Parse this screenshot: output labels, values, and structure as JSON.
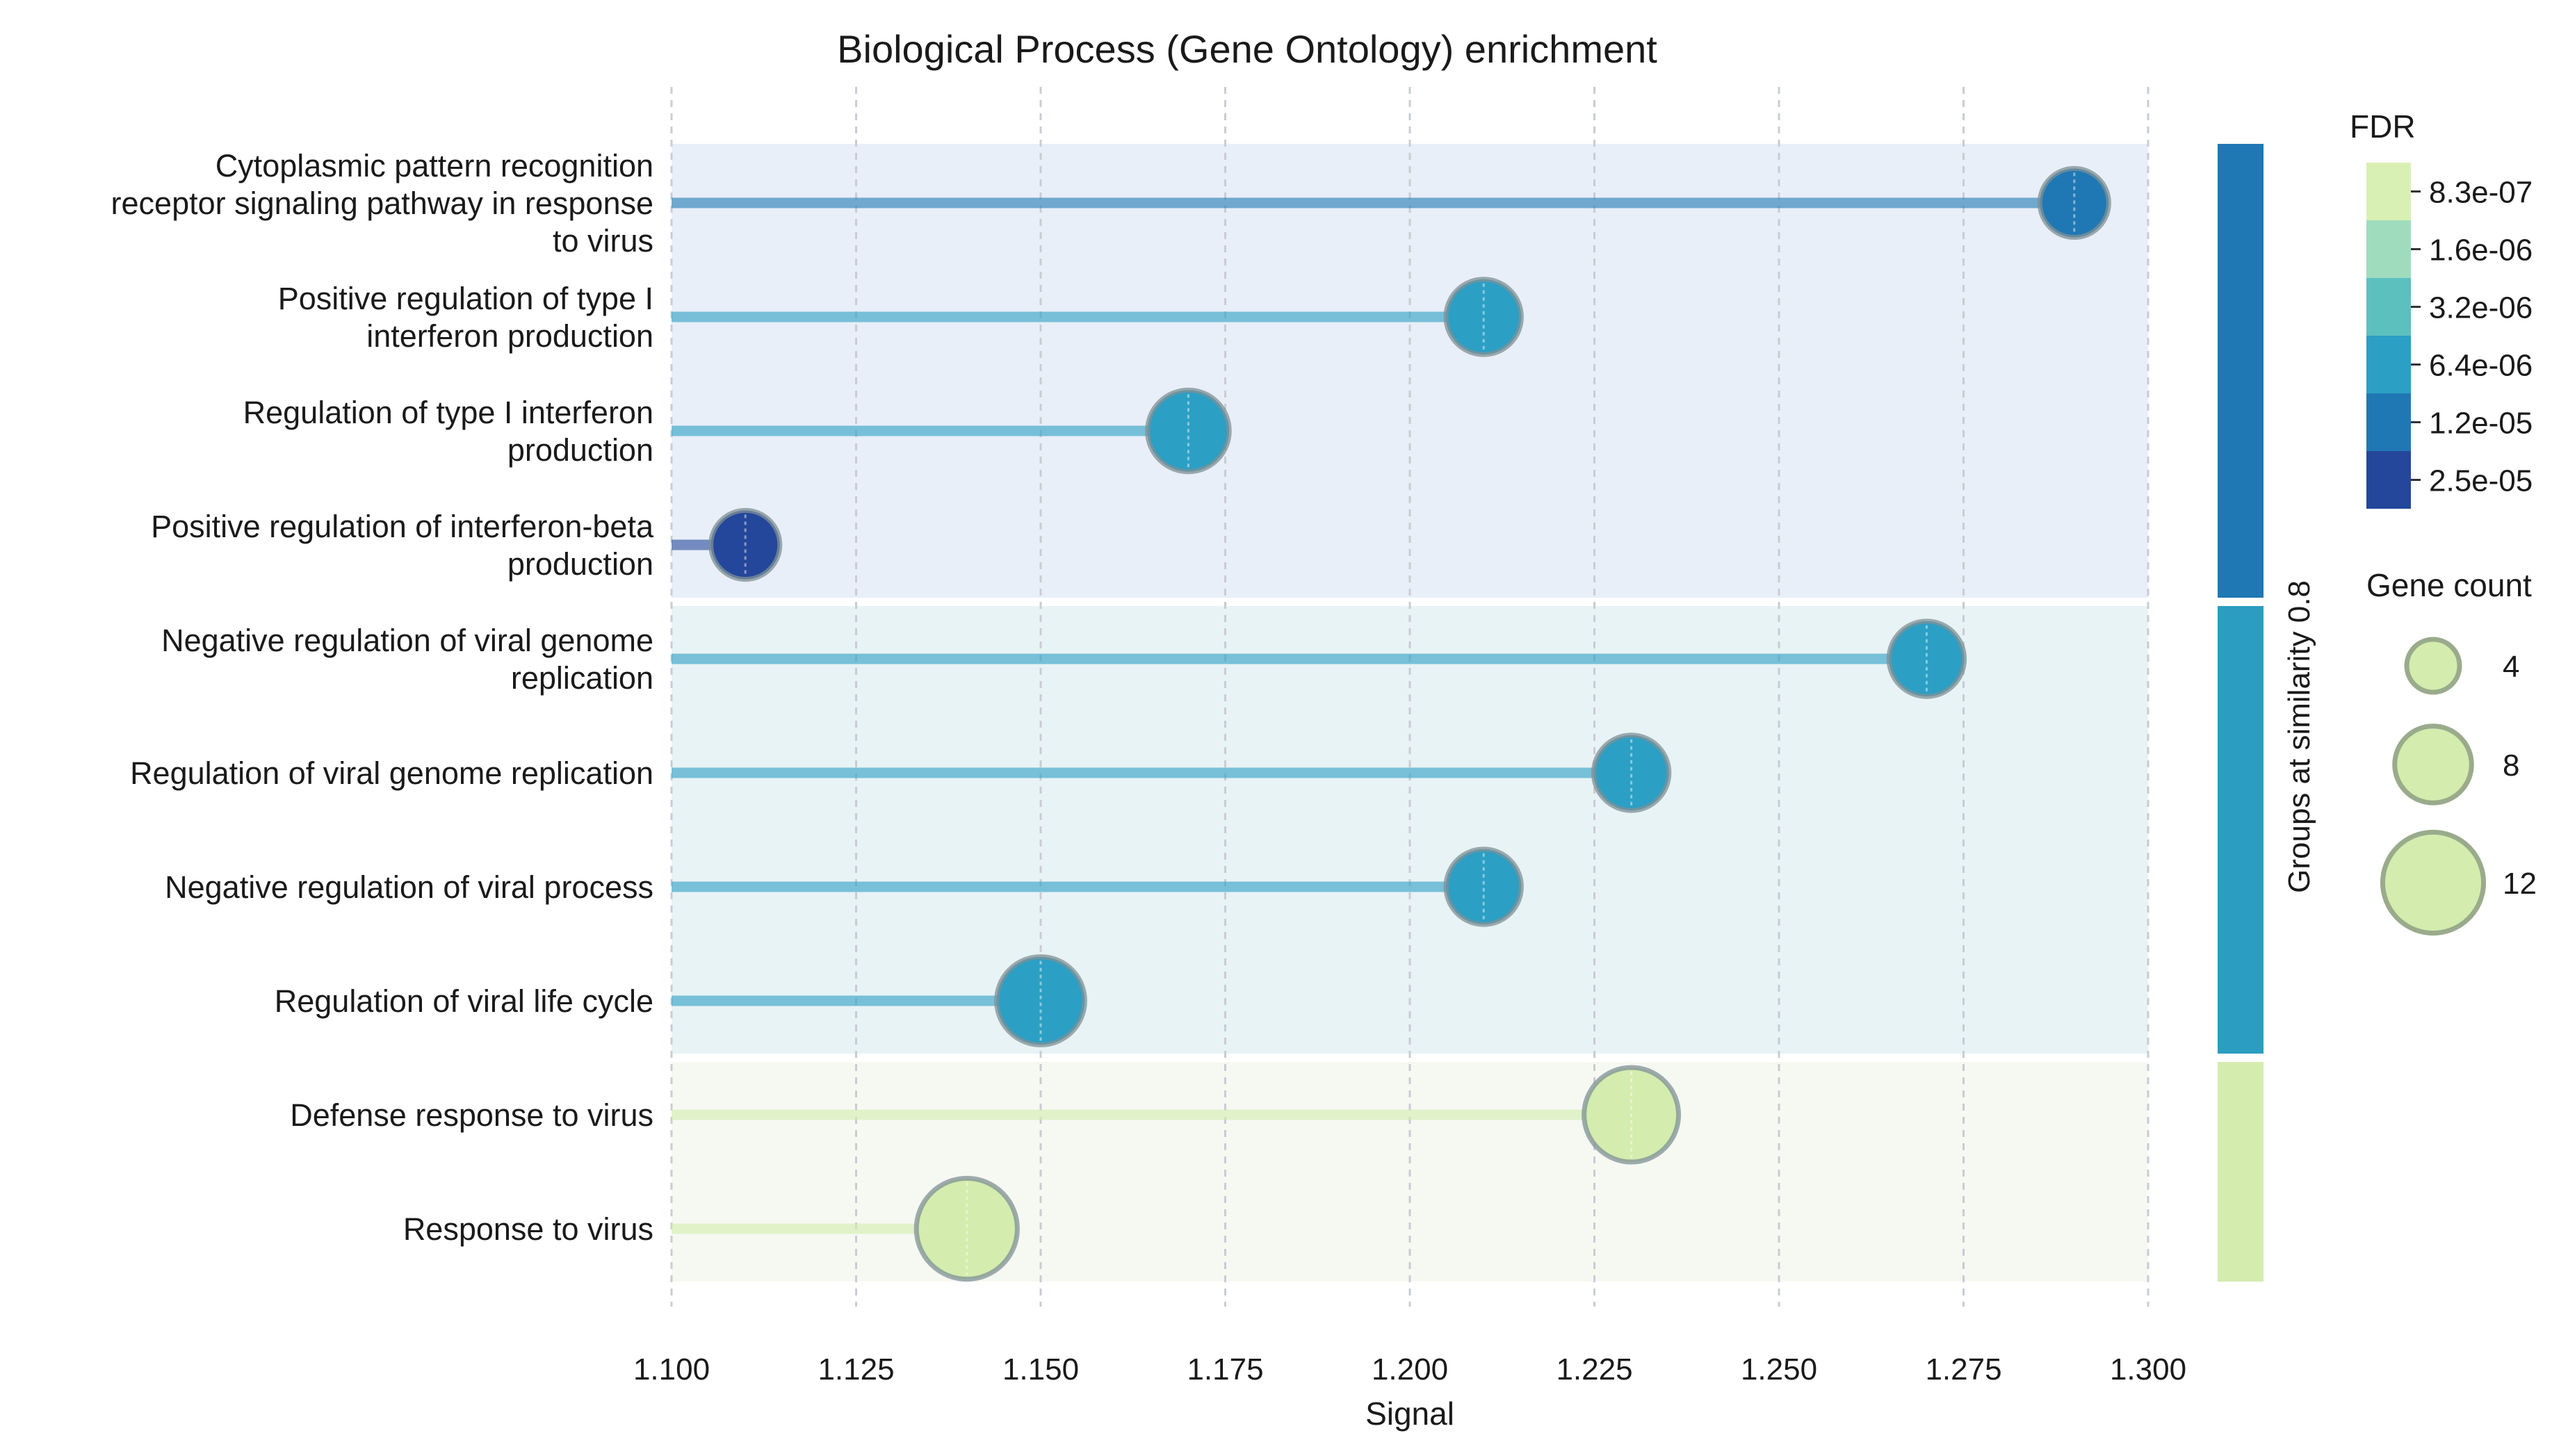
{
  "chart_data": {
    "type": "lollipop",
    "title": "Biological Process (Gene Ontology) enrichment",
    "xlabel": "Signal",
    "xlim": [
      1.1,
      1.3
    ],
    "xticks": [
      "1.100",
      "1.125",
      "1.150",
      "1.175",
      "1.200",
      "1.225",
      "1.250",
      "1.275",
      "1.300"
    ],
    "xtick_values": [
      1.1,
      1.125,
      1.15,
      1.175,
      1.2,
      1.225,
      1.25,
      1.275,
      1.3
    ],
    "grid": "vertical dashed",
    "group_axis_label": "Groups at similarity 0.8",
    "groups": [
      {
        "color": "#1f78b4",
        "background": "#e8eff8",
        "terms": [
          0,
          1,
          2,
          3
        ]
      },
      {
        "color": "#2b9dc0",
        "background": "#e8f3f5",
        "terms": [
          4,
          5,
          6,
          7
        ]
      },
      {
        "color": "#d4ecae",
        "background": "#f6f9f2",
        "terms": [
          8,
          9
        ]
      }
    ],
    "terms": [
      {
        "label_lines": [
          "Cytoplasmic pattern recognition",
          "receptor signaling pathway in response",
          "to virus"
        ],
        "signal": 1.29,
        "gene_count": 6,
        "color": "#1f78b4"
      },
      {
        "label_lines": [
          "Positive regulation of type I",
          "interferon production"
        ],
        "signal": 1.21,
        "gene_count": 7,
        "color": "#2c9fc4"
      },
      {
        "label_lines": [
          "Regulation of type I interferon",
          "production"
        ],
        "signal": 1.17,
        "gene_count": 8,
        "color": "#2c9fc4"
      },
      {
        "label_lines": [
          "Positive regulation of interferon-beta",
          "production"
        ],
        "signal": 1.11,
        "gene_count": 6,
        "color": "#24479b"
      },
      {
        "label_lines": [
          "Negative regulation of viral genome",
          "replication"
        ],
        "signal": 1.27,
        "gene_count": 7,
        "color": "#2c9fc4"
      },
      {
        "label_lines": [
          "Regulation of viral genome replication"
        ],
        "signal": 1.23,
        "gene_count": 7,
        "color": "#2c9fc4"
      },
      {
        "label_lines": [
          "Negative regulation of viral process"
        ],
        "signal": 1.21,
        "gene_count": 7,
        "color": "#2c9fc4"
      },
      {
        "label_lines": [
          "Regulation of viral life cycle"
        ],
        "signal": 1.15,
        "gene_count": 9,
        "color": "#2c9fc4"
      },
      {
        "label_lines": [
          "Defense response to virus"
        ],
        "signal": 1.23,
        "gene_count": 10,
        "color": "#d4ecae"
      },
      {
        "label_lines": [
          "Response to virus"
        ],
        "signal": 1.14,
        "gene_count": 11,
        "color": "#d4ecae"
      }
    ],
    "fdr_legend": {
      "title": "FDR",
      "labels": [
        "8.3e-07",
        "1.6e-06",
        "3.2e-06",
        "6.4e-06",
        "1.2e-05",
        "2.5e-05"
      ],
      "colors": [
        "#d9f0b4",
        "#9fdcbe",
        "#5cc0bf",
        "#2c9fc4",
        "#1f78b4",
        "#24479b"
      ]
    },
    "size_legend": {
      "title": "Gene count",
      "values": [
        4,
        8,
        12
      ],
      "labels": [
        "4",
        "8",
        "12"
      ]
    }
  }
}
